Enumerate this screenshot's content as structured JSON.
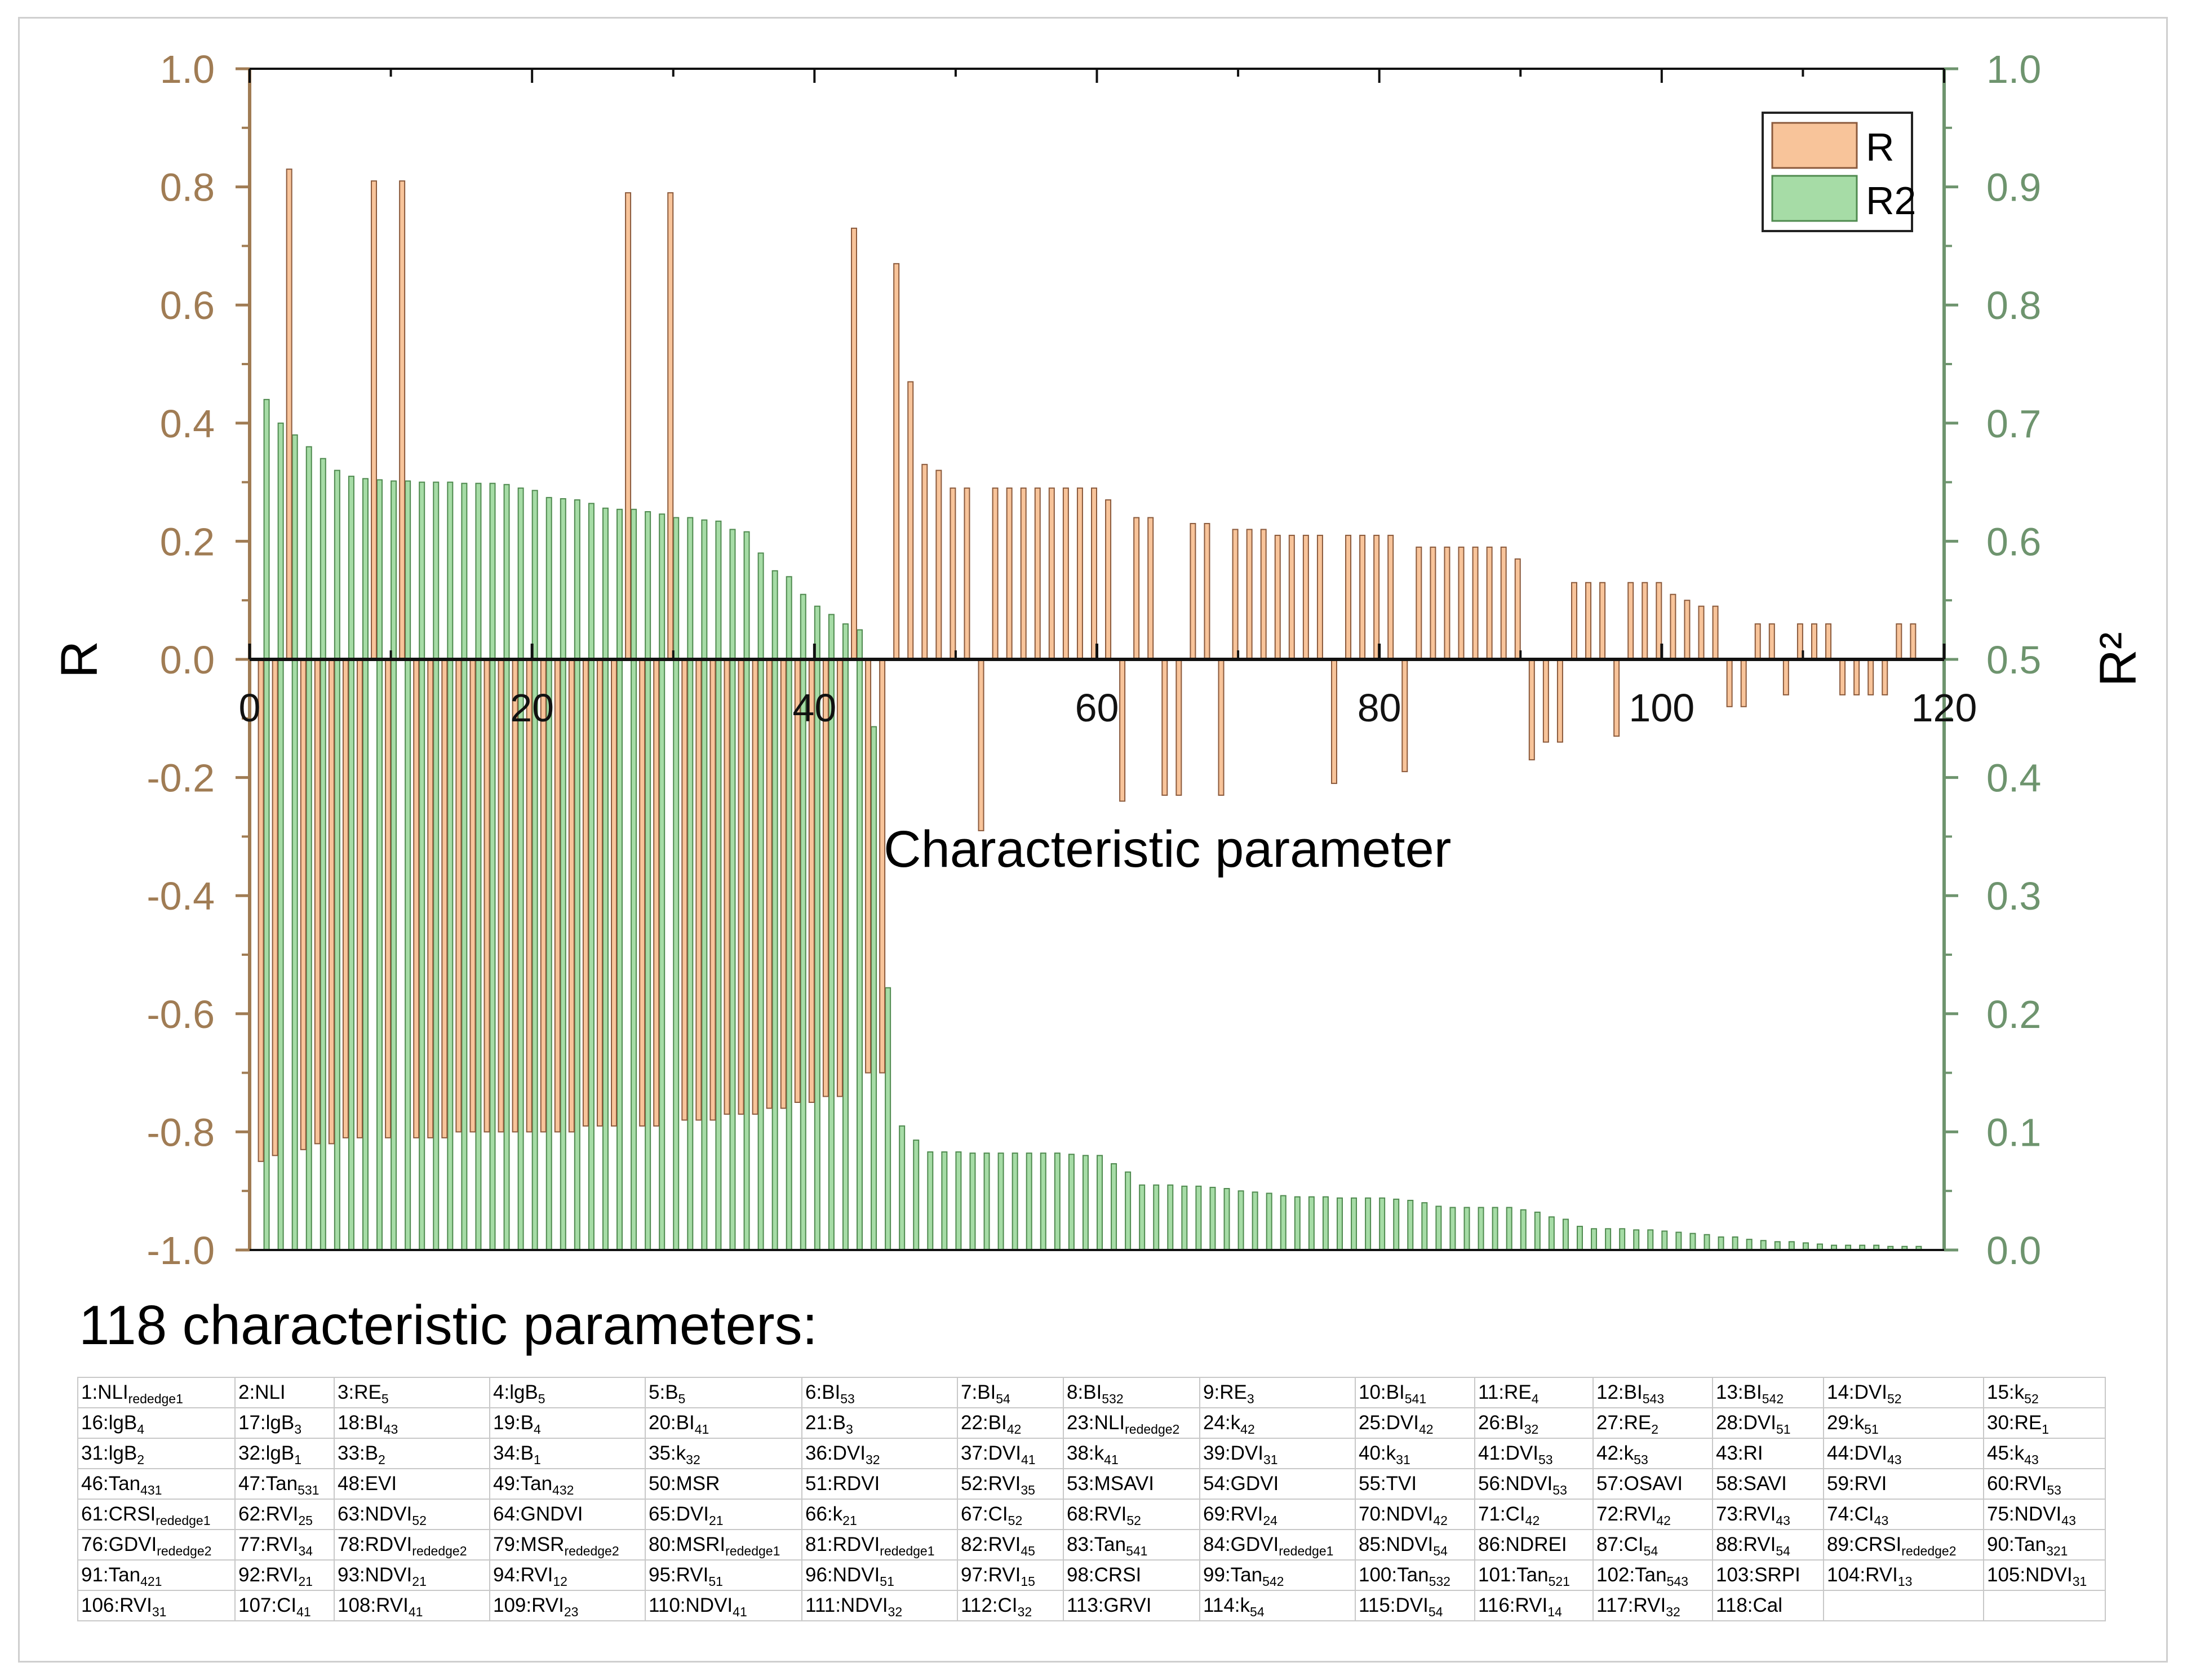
{
  "chart_data": {
    "type": "bar",
    "xlabel": "Characteristic parameter",
    "ylabel": "R",
    "y2label": "R²",
    "xlim": [
      0,
      120
    ],
    "ylim": [
      -1.0,
      1.0
    ],
    "y2lim": [
      0.0,
      1.0
    ],
    "xticks": [
      0,
      20,
      40,
      60,
      80,
      100,
      120
    ],
    "yticks": [
      1.0,
      0.8,
      0.6,
      0.4,
      0.2,
      0.0,
      -0.2,
      -0.4,
      -0.6,
      -0.8,
      -1.0
    ],
    "y2ticks": [
      1.0,
      0.9,
      0.8,
      0.7,
      0.6,
      0.5,
      0.4,
      0.3,
      0.2,
      0.1,
      0.0
    ],
    "xtick_labels": [
      "0",
      "20",
      "40",
      "60",
      "80",
      "100",
      "120"
    ],
    "ytick_labels": [
      "1.0",
      "0.8",
      "0.6",
      "0.4",
      "0.2",
      "0.0",
      "-0.2",
      "-0.4",
      "-0.6",
      "-0.8",
      "-1.0"
    ],
    "y2tick_labels": [
      "1.0",
      "0.9",
      "0.8",
      "0.7",
      "0.6",
      "0.5",
      "0.4",
      "0.3",
      "0.2",
      "0.1",
      "0.0"
    ],
    "legend": {
      "position": "top-right",
      "entries": [
        "R",
        "R2"
      ]
    },
    "grid": false,
    "colors": {
      "R": "#f8c49a",
      "R_edge": "#8b5a3c",
      "R2": "#a6dca6",
      "R2_edge": "#4f8a4f",
      "left_axis": "#a07c54",
      "right_axis": "#6e946e"
    },
    "x": [
      1,
      2,
      3,
      4,
      5,
      6,
      7,
      8,
      9,
      10,
      11,
      12,
      13,
      14,
      15,
      16,
      17,
      18,
      19,
      20,
      21,
      22,
      23,
      24,
      25,
      26,
      27,
      28,
      29,
      30,
      31,
      32,
      33,
      34,
      35,
      36,
      37,
      38,
      39,
      40,
      41,
      42,
      43,
      44,
      45,
      46,
      47,
      48,
      49,
      50,
      51,
      52,
      53,
      54,
      55,
      56,
      57,
      58,
      59,
      60,
      61,
      62,
      63,
      64,
      65,
      66,
      67,
      68,
      69,
      70,
      71,
      72,
      73,
      74,
      75,
      76,
      77,
      78,
      79,
      80,
      81,
      82,
      83,
      84,
      85,
      86,
      87,
      88,
      89,
      90,
      91,
      92,
      93,
      94,
      95,
      96,
      97,
      98,
      99,
      100,
      101,
      102,
      103,
      104,
      105,
      106,
      107,
      108,
      109,
      110,
      111,
      112,
      113,
      114,
      115,
      116,
      117,
      118
    ],
    "series": [
      {
        "name": "R",
        "axis": "left",
        "values": [
          -0.85,
          -0.84,
          0.83,
          -0.83,
          -0.82,
          -0.82,
          -0.81,
          -0.81,
          0.81,
          -0.81,
          0.81,
          -0.81,
          -0.81,
          -0.81,
          -0.8,
          -0.8,
          -0.8,
          -0.8,
          -0.8,
          -0.8,
          -0.8,
          -0.8,
          -0.8,
          -0.79,
          -0.79,
          -0.79,
          0.79,
          -0.79,
          -0.79,
          0.79,
          -0.78,
          -0.78,
          -0.78,
          -0.77,
          -0.77,
          -0.77,
          -0.76,
          -0.76,
          -0.75,
          -0.75,
          -0.74,
          -0.74,
          0.73,
          -0.7,
          -0.7,
          0.67,
          0.47,
          0.33,
          0.32,
          0.29,
          0.29,
          -0.29,
          0.29,
          0.29,
          0.29,
          0.29,
          0.29,
          0.29,
          0.29,
          0.29,
          0.27,
          -0.24,
          0.24,
          0.24,
          -0.23,
          -0.23,
          0.23,
          0.23,
          -0.23,
          0.22,
          0.22,
          0.22,
          0.21,
          0.21,
          0.21,
          0.21,
          -0.21,
          0.21,
          0.21,
          0.21,
          0.21,
          -0.19,
          0.19,
          0.19,
          0.19,
          0.19,
          0.19,
          0.19,
          0.19,
          0.17,
          -0.17,
          -0.14,
          -0.14,
          0.13,
          0.13,
          0.13,
          -0.13,
          0.13,
          0.13,
          0.13,
          0.11,
          0.1,
          0.09,
          0.09,
          -0.08,
          -0.08,
          0.06,
          0.06,
          -0.06,
          0.06,
          0.06,
          0.06,
          -0.06,
          -0.06,
          -0.06,
          -0.06,
          0.06,
          0.06
        ]
      },
      {
        "name": "R2",
        "axis": "right",
        "values": [
          0.72,
          0.7,
          0.69,
          0.68,
          0.67,
          0.66,
          0.655,
          0.653,
          0.652,
          0.651,
          0.651,
          0.65,
          0.65,
          0.65,
          0.649,
          0.649,
          0.649,
          0.648,
          0.645,
          0.643,
          0.637,
          0.636,
          0.635,
          0.632,
          0.628,
          0.627,
          0.627,
          0.625,
          0.623,
          0.62,
          0.62,
          0.618,
          0.617,
          0.61,
          0.608,
          0.59,
          0.575,
          0.57,
          0.555,
          0.545,
          0.538,
          0.53,
          0.525,
          0.443,
          0.222,
          0.105,
          0.093,
          0.083,
          0.083,
          0.083,
          0.082,
          0.082,
          0.082,
          0.082,
          0.082,
          0.082,
          0.082,
          0.081,
          0.08,
          0.08,
          0.073,
          0.066,
          0.055,
          0.055,
          0.055,
          0.054,
          0.054,
          0.053,
          0.052,
          0.05,
          0.049,
          0.048,
          0.046,
          0.045,
          0.045,
          0.045,
          0.044,
          0.044,
          0.044,
          0.044,
          0.043,
          0.042,
          0.04,
          0.037,
          0.036,
          0.036,
          0.036,
          0.036,
          0.036,
          0.034,
          0.032,
          0.028,
          0.026,
          0.02,
          0.018,
          0.018,
          0.018,
          0.017,
          0.017,
          0.016,
          0.015,
          0.014,
          0.013,
          0.011,
          0.011,
          0.009,
          0.008,
          0.007,
          0.007,
          0.006,
          0.005,
          0.004,
          0.004,
          0.004,
          0.004,
          0.003,
          0.003,
          0.003
        ]
      }
    ]
  },
  "params_title": "118 characteristic parameters:",
  "params_rows": [
    [
      [
        "1:NLI",
        "rededge1"
      ],
      [
        "2:NLI",
        ""
      ],
      [
        "3:RE",
        "5"
      ],
      [
        "4:lgB",
        "5"
      ],
      [
        "5:B",
        "5"
      ],
      [
        "6:BI",
        "53"
      ],
      [
        "7:BI",
        "54"
      ],
      [
        "8:BI",
        "532"
      ],
      [
        "9:RE",
        "3"
      ],
      [
        "10:BI",
        "541"
      ],
      [
        "11:RE",
        "4"
      ],
      [
        "12:BI",
        "543"
      ],
      [
        "13:BI",
        "542"
      ],
      [
        "14:DVI",
        "52"
      ],
      [
        "15:k",
        "52"
      ]
    ],
    [
      [
        "16:lgB",
        "4"
      ],
      [
        "17:lgB",
        "3"
      ],
      [
        "18:BI",
        "43"
      ],
      [
        "19:B",
        "4"
      ],
      [
        "20:BI",
        "41"
      ],
      [
        "21:B",
        "3"
      ],
      [
        "22:BI",
        "42"
      ],
      [
        "23:NLI",
        "rededge2"
      ],
      [
        "24:k",
        "42"
      ],
      [
        "25:DVI",
        "42"
      ],
      [
        "26:BI",
        "32"
      ],
      [
        "27:RE",
        "2"
      ],
      [
        "28:DVI",
        "51"
      ],
      [
        "29:k",
        "51"
      ],
      [
        "30:RE",
        "1"
      ]
    ],
    [
      [
        "31:lgB",
        "2"
      ],
      [
        "32:lgB",
        "1"
      ],
      [
        "33:B",
        "2"
      ],
      [
        "34:B",
        "1"
      ],
      [
        "35:k",
        "32"
      ],
      [
        "36:DVI",
        "32"
      ],
      [
        "37:DVI",
        "41"
      ],
      [
        "38:k",
        "41"
      ],
      [
        "39:DVI",
        "31"
      ],
      [
        "40:k",
        "31"
      ],
      [
        "41:DVI",
        "53"
      ],
      [
        "42:k",
        "53"
      ],
      [
        "43:RI",
        ""
      ],
      [
        "44:DVI",
        "43"
      ],
      [
        "45:k",
        "43"
      ]
    ],
    [
      [
        "46:Tan",
        "431"
      ],
      [
        "47:Tan",
        "531"
      ],
      [
        "48:EVI",
        ""
      ],
      [
        "49:Tan",
        "432"
      ],
      [
        "50:MSR",
        ""
      ],
      [
        "51:RDVI",
        ""
      ],
      [
        "52:RVI",
        "35"
      ],
      [
        "53:MSAVI",
        ""
      ],
      [
        "54:GDVI",
        ""
      ],
      [
        "55:TVI",
        ""
      ],
      [
        "56:NDVI",
        "53"
      ],
      [
        "57:OSAVI",
        ""
      ],
      [
        "58:SAVI",
        ""
      ],
      [
        "59:RVI",
        ""
      ],
      [
        "60:RVI",
        "53"
      ]
    ],
    [
      [
        "61:CRSI",
        "rededge1"
      ],
      [
        "62:RVI",
        "25"
      ],
      [
        "63:NDVI",
        "52"
      ],
      [
        "64:GNDVI",
        ""
      ],
      [
        "65:DVI",
        "21"
      ],
      [
        "66:k",
        "21"
      ],
      [
        "67:CI",
        "52"
      ],
      [
        "68:RVI",
        "52"
      ],
      [
        "69:RVI",
        "24"
      ],
      [
        "70:NDVI",
        "42"
      ],
      [
        "71:CI",
        "42"
      ],
      [
        "72:RVI",
        "42"
      ],
      [
        "73:RVI",
        "43"
      ],
      [
        "74:CI",
        "43"
      ],
      [
        "75:NDVI",
        "43"
      ]
    ],
    [
      [
        "76:GDVI",
        "rededge2"
      ],
      [
        "77:RVI",
        "34"
      ],
      [
        "78:RDVI",
        "rededge2"
      ],
      [
        "79:MSR",
        "rededge2"
      ],
      [
        "80:MSRI",
        "rededge1"
      ],
      [
        "81:RDVI",
        "rededge1"
      ],
      [
        "82:RVI",
        "45"
      ],
      [
        "83:Tan",
        "541"
      ],
      [
        "84:GDVI",
        "rededge1"
      ],
      [
        "85:NDVI",
        "54"
      ],
      [
        "86:NDREI",
        ""
      ],
      [
        "87:CI",
        "54"
      ],
      [
        "88:RVI",
        "54"
      ],
      [
        "89:CRSI",
        "rededge2"
      ],
      [
        "90:Tan",
        "321"
      ]
    ],
    [
      [
        "91:Tan",
        "421"
      ],
      [
        "92:RVI",
        "21"
      ],
      [
        "93:NDVI",
        "21"
      ],
      [
        "94:RVI",
        "12"
      ],
      [
        "95:RVI",
        "51"
      ],
      [
        "96:NDVI",
        "51"
      ],
      [
        "97:RVI",
        "15"
      ],
      [
        "98:CRSI",
        ""
      ],
      [
        "99:Tan",
        "542"
      ],
      [
        "100:Tan",
        "532"
      ],
      [
        "101:Tan",
        "521"
      ],
      [
        "102:Tan",
        "543"
      ],
      [
        "103:SRPI",
        ""
      ],
      [
        "104:RVI",
        "13"
      ],
      [
        "105:NDVI",
        "31"
      ]
    ],
    [
      [
        "106:RVI",
        "31"
      ],
      [
        "107:CI",
        "41"
      ],
      [
        "108:RVI",
        "41"
      ],
      [
        "109:RVI",
        "23"
      ],
      [
        "110:NDVI",
        "41"
      ],
      [
        "111:NDVI",
        "32"
      ],
      [
        "112:CI",
        "32"
      ],
      [
        "113:GRVI",
        ""
      ],
      [
        "114:k",
        "54"
      ],
      [
        "115:DVI",
        "54"
      ],
      [
        "116:RVI",
        "14"
      ],
      [
        "117:RVI",
        "32"
      ],
      [
        "118:Cal",
        ""
      ],
      [
        "",
        ""
      ],
      [
        "",
        ""
      ]
    ]
  ]
}
